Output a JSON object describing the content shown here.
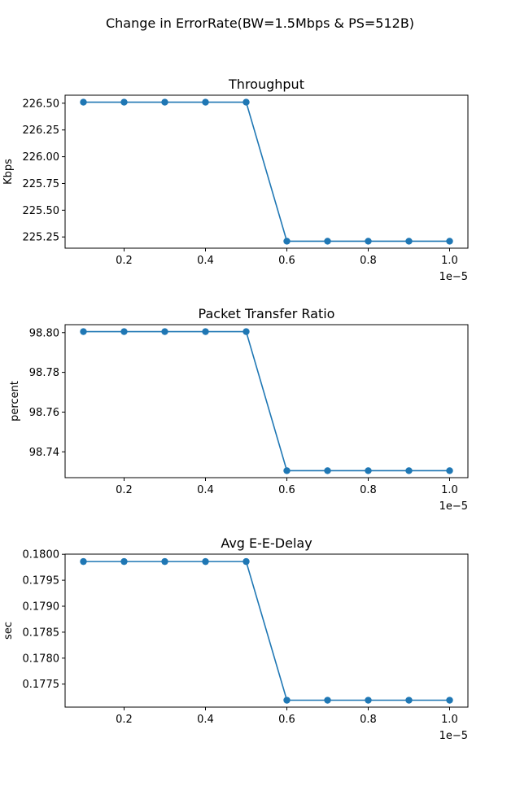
{
  "figure": {
    "suptitle": "Change in ErrorRate(BW=1.5Mbps & PS=512B)",
    "line_color": "#1f77b4"
  },
  "chart_data": [
    {
      "type": "line",
      "title": "Throughput",
      "xlabel": "",
      "ylabel": "Kbps",
      "x_offset_label": "1e−5",
      "x": [
        0.1,
        0.2,
        0.3,
        0.4,
        0.5,
        0.6,
        0.7,
        0.8,
        0.9,
        1.0
      ],
      "series": [
        {
          "values": [
            226.51,
            226.51,
            226.51,
            226.51,
            226.51,
            225.21,
            225.21,
            225.21,
            225.21,
            225.21
          ],
          "marker": "circle"
        }
      ],
      "xlim": [
        0.055,
        1.045
      ],
      "ylim": [
        225.145,
        226.575
      ],
      "xticks": [
        0.2,
        0.4,
        0.6,
        0.8,
        1.0
      ],
      "xtick_labels": [
        "0.2",
        "0.4",
        "0.6",
        "0.8",
        "1.0"
      ],
      "yticks": [
        225.25,
        225.5,
        225.75,
        226.0,
        226.25,
        226.5
      ],
      "ytick_labels": [
        "225.25",
        "225.50",
        "225.75",
        "226.00",
        "226.25",
        "226.50"
      ],
      "grid": false
    },
    {
      "type": "line",
      "title": "Packet Transfer Ratio",
      "xlabel": "",
      "ylabel": "percent",
      "x_offset_label": "1e−5",
      "x": [
        0.1,
        0.2,
        0.3,
        0.4,
        0.5,
        0.6,
        0.7,
        0.8,
        0.9,
        1.0
      ],
      "series": [
        {
          "values": [
            98.8005,
            98.8005,
            98.8005,
            98.8005,
            98.8005,
            98.7305,
            98.7305,
            98.7305,
            98.7305,
            98.7305
          ],
          "marker": "circle"
        }
      ],
      "xlim": [
        0.055,
        1.045
      ],
      "ylim": [
        98.727,
        98.804
      ],
      "xticks": [
        0.2,
        0.4,
        0.6,
        0.8,
        1.0
      ],
      "xtick_labels": [
        "0.2",
        "0.4",
        "0.6",
        "0.8",
        "1.0"
      ],
      "yticks": [
        98.74,
        98.76,
        98.78,
        98.8
      ],
      "ytick_labels": [
        "98.74",
        "98.76",
        "98.78",
        "98.80"
      ],
      "grid": false
    },
    {
      "type": "line",
      "title": "Avg E-E-Delay",
      "xlabel": "",
      "ylabel": "sec",
      "x_offset_label": "1e−5",
      "x": [
        0.1,
        0.2,
        0.3,
        0.4,
        0.5,
        0.6,
        0.7,
        0.8,
        0.9,
        1.0
      ],
      "series": [
        {
          "values": [
            0.17986,
            0.17986,
            0.17986,
            0.17986,
            0.17986,
            0.17719,
            0.17719,
            0.17719,
            0.17719,
            0.17719
          ],
          "marker": "circle"
        }
      ],
      "xlim": [
        0.055,
        1.045
      ],
      "ylim": [
        0.177057,
        0.180003
      ],
      "xticks": [
        0.2,
        0.4,
        0.6,
        0.8,
        1.0
      ],
      "xtick_labels": [
        "0.2",
        "0.4",
        "0.6",
        "0.8",
        "1.0"
      ],
      "yticks": [
        0.1775,
        0.178,
        0.1785,
        0.179,
        0.1795,
        0.18
      ],
      "ytick_labels": [
        "0.1775",
        "0.1780",
        "0.1785",
        "0.1790",
        "0.1795",
        "0.1800"
      ],
      "grid": false
    }
  ]
}
